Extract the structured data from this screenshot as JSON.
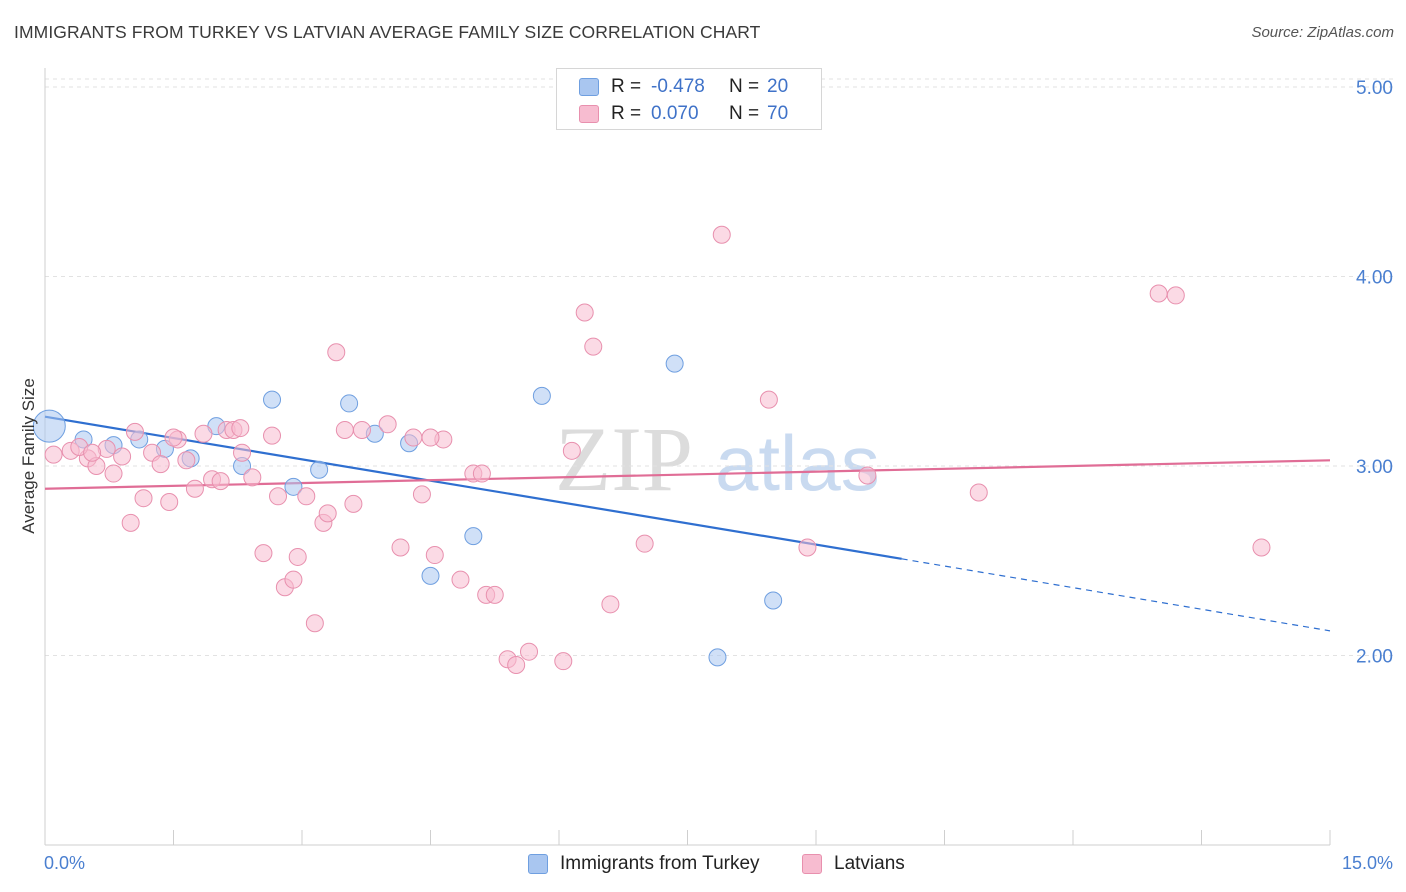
{
  "title": "IMMIGRANTS FROM TURKEY VS LATVIAN AVERAGE FAMILY SIZE CORRELATION CHART",
  "source": "Source: ZipAtlas.com",
  "watermark": {
    "zip": "ZIP",
    "atlas": "atlas"
  },
  "legend": [
    {
      "r_label": "R =",
      "r_value": "-0.478",
      "n_label": "N =",
      "n_value": "20",
      "color": "#a9c6f0",
      "border": "#6f9fe0"
    },
    {
      "r_label": "R =",
      "r_value": "0.070",
      "n_label": "N =",
      "n_value": "70",
      "color": "#f7bcd0",
      "border": "#e890ae"
    }
  ],
  "bottom_legend": [
    {
      "label": "Immigrants from Turkey",
      "color": "#a9c6f0",
      "border": "#6f9fe0"
    },
    {
      "label": "Latvians",
      "color": "#f7bcd0",
      "border": "#e890ae"
    }
  ],
  "chart_data": {
    "type": "scatter",
    "title": "IMMIGRANTS FROM TURKEY VS LATVIAN AVERAGE FAMILY SIZE CORRELATION CHART",
    "xlabel": "",
    "ylabel": "Average Family Size",
    "xlim": [
      0,
      15
    ],
    "ylim": [
      1.0,
      5.1
    ],
    "x_tick_labels": [
      "0.0%",
      "15.0%"
    ],
    "y_ticks": [
      2.0,
      3.0,
      4.0,
      5.0
    ],
    "y_tick_labels": [
      "2.00",
      "3.00",
      "4.00",
      "5.00"
    ],
    "grid": "horizontal dashed",
    "legend_position": "top-center",
    "series": [
      {
        "name": "Immigrants from Turkey",
        "color": "#6f9fe0",
        "fill": "#a9c6f0",
        "points": [
          {
            "x": 0.05,
            "y": 3.21,
            "big": true
          },
          {
            "x": 0.45,
            "y": 3.14
          },
          {
            "x": 0.8,
            "y": 3.11
          },
          {
            "x": 1.1,
            "y": 3.14
          },
          {
            "x": 1.4,
            "y": 3.09
          },
          {
            "x": 1.7,
            "y": 3.04
          },
          {
            "x": 2.0,
            "y": 3.21
          },
          {
            "x": 2.3,
            "y": 3.0
          },
          {
            "x": 2.65,
            "y": 3.35
          },
          {
            "x": 2.9,
            "y": 2.89
          },
          {
            "x": 3.2,
            "y": 2.98
          },
          {
            "x": 3.55,
            "y": 3.33
          },
          {
            "x": 3.85,
            "y": 3.17
          },
          {
            "x": 4.25,
            "y": 3.12
          },
          {
            "x": 4.5,
            "y": 2.42
          },
          {
            "x": 5.0,
            "y": 2.63
          },
          {
            "x": 5.8,
            "y": 3.37
          },
          {
            "x": 7.35,
            "y": 3.54
          },
          {
            "x": 7.85,
            "y": 1.99
          },
          {
            "x": 8.5,
            "y": 2.29
          }
        ],
        "trend": {
          "x0": 0.0,
          "y0": 3.26,
          "x1": 10.0,
          "y1": 2.51,
          "dash_to_x": 15.0,
          "dash_to_y": 2.13
        }
      },
      {
        "name": "Latvians",
        "color": "#e890ae",
        "fill": "#f7bcd0",
        "points": [
          {
            "x": 0.1,
            "y": 3.06
          },
          {
            "x": 0.3,
            "y": 3.08
          },
          {
            "x": 0.5,
            "y": 3.04
          },
          {
            "x": 0.6,
            "y": 3.0
          },
          {
            "x": 0.72,
            "y": 3.09
          },
          {
            "x": 0.8,
            "y": 2.96
          },
          {
            "x": 0.9,
            "y": 3.05
          },
          {
            "x": 1.0,
            "y": 2.7
          },
          {
            "x": 1.05,
            "y": 3.18
          },
          {
            "x": 1.15,
            "y": 2.83
          },
          {
            "x": 1.25,
            "y": 3.07
          },
          {
            "x": 1.35,
            "y": 3.01
          },
          {
            "x": 1.45,
            "y": 2.81
          },
          {
            "x": 1.55,
            "y": 3.14
          },
          {
            "x": 1.65,
            "y": 3.03
          },
          {
            "x": 1.75,
            "y": 2.88
          },
          {
            "x": 1.85,
            "y": 3.17
          },
          {
            "x": 1.95,
            "y": 2.93
          },
          {
            "x": 2.05,
            "y": 2.92
          },
          {
            "x": 2.12,
            "y": 3.19
          },
          {
            "x": 2.2,
            "y": 3.19
          },
          {
            "x": 2.3,
            "y": 3.07
          },
          {
            "x": 2.42,
            "y": 2.94
          },
          {
            "x": 2.55,
            "y": 2.54
          },
          {
            "x": 2.65,
            "y": 3.16
          },
          {
            "x": 2.72,
            "y": 2.84
          },
          {
            "x": 2.8,
            "y": 2.36
          },
          {
            "x": 2.9,
            "y": 2.4
          },
          {
            "x": 2.95,
            "y": 2.52
          },
          {
            "x": 3.05,
            "y": 2.84
          },
          {
            "x": 3.15,
            "y": 2.17
          },
          {
            "x": 3.25,
            "y": 2.7
          },
          {
            "x": 3.3,
            "y": 2.75
          },
          {
            "x": 3.4,
            "y": 3.6
          },
          {
            "x": 3.5,
            "y": 3.19
          },
          {
            "x": 3.6,
            "y": 2.8
          },
          {
            "x": 3.7,
            "y": 3.19
          },
          {
            "x": 4.0,
            "y": 3.22
          },
          {
            "x": 4.15,
            "y": 2.57
          },
          {
            "x": 4.3,
            "y": 3.15
          },
          {
            "x": 4.4,
            "y": 2.85
          },
          {
            "x": 4.55,
            "y": 2.53
          },
          {
            "x": 4.65,
            "y": 3.14
          },
          {
            "x": 4.85,
            "y": 2.4
          },
          {
            "x": 5.0,
            "y": 2.96
          },
          {
            "x": 5.15,
            "y": 2.32
          },
          {
            "x": 5.25,
            "y": 2.32
          },
          {
            "x": 5.4,
            "y": 1.98
          },
          {
            "x": 5.5,
            "y": 1.95
          },
          {
            "x": 5.65,
            "y": 2.02
          },
          {
            "x": 6.05,
            "y": 1.97
          },
          {
            "x": 6.15,
            "y": 3.08
          },
          {
            "x": 6.3,
            "y": 3.81
          },
          {
            "x": 6.4,
            "y": 3.63
          },
          {
            "x": 6.6,
            "y": 2.27
          },
          {
            "x": 7.0,
            "y": 2.59
          },
          {
            "x": 7.9,
            "y": 4.22
          },
          {
            "x": 8.45,
            "y": 3.35
          },
          {
            "x": 8.9,
            "y": 2.57
          },
          {
            "x": 9.6,
            "y": 2.95
          },
          {
            "x": 10.9,
            "y": 2.86
          },
          {
            "x": 13.0,
            "y": 3.91
          },
          {
            "x": 13.2,
            "y": 3.9
          },
          {
            "x": 14.2,
            "y": 2.57
          },
          {
            "x": 0.4,
            "y": 3.1
          },
          {
            "x": 0.55,
            "y": 3.07
          },
          {
            "x": 1.5,
            "y": 3.15
          },
          {
            "x": 2.28,
            "y": 3.2
          },
          {
            "x": 4.5,
            "y": 3.15
          },
          {
            "x": 5.1,
            "y": 2.96
          }
        ],
        "trend": {
          "x0": 0.0,
          "y0": 2.88,
          "x1": 15.0,
          "y1": 3.03
        }
      }
    ]
  }
}
